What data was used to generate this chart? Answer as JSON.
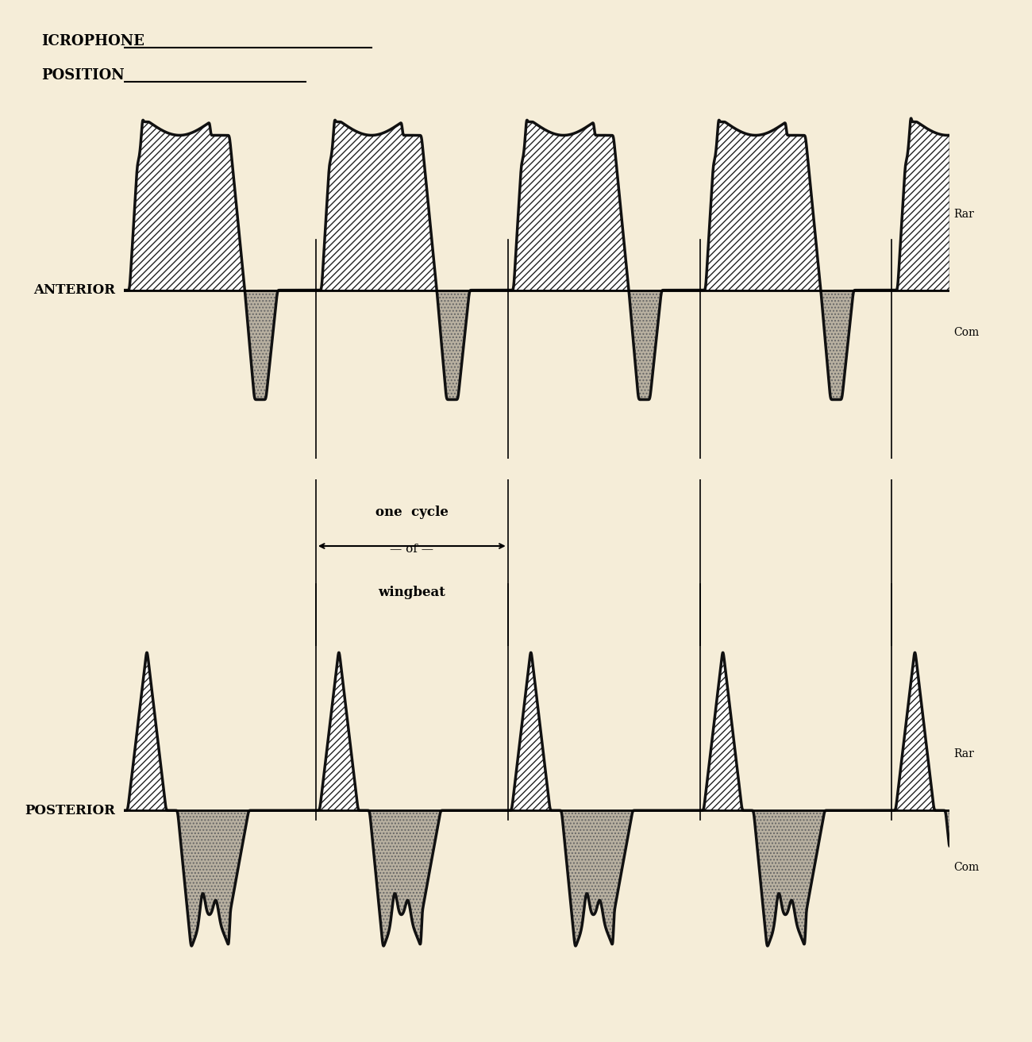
{
  "background_color": "#f5edd8",
  "anterior_label": "ANTERIOR",
  "posterior_label": "POSTERIOR",
  "rare_label": "Rar",
  "comp_label": "Com",
  "cycle_text_1": "one  cycle",
  "cycle_text_2": "of",
  "cycle_text_3": "wingbeat",
  "header_1": "ICROPHONE",
  "header_2": "POSITION",
  "n_cycles": 4.3,
  "hatch_pattern": "////",
  "stipple_color": "#b8b0a0",
  "line_color": "#111111",
  "line_width": 2.5,
  "baseline_lw": 2.0
}
